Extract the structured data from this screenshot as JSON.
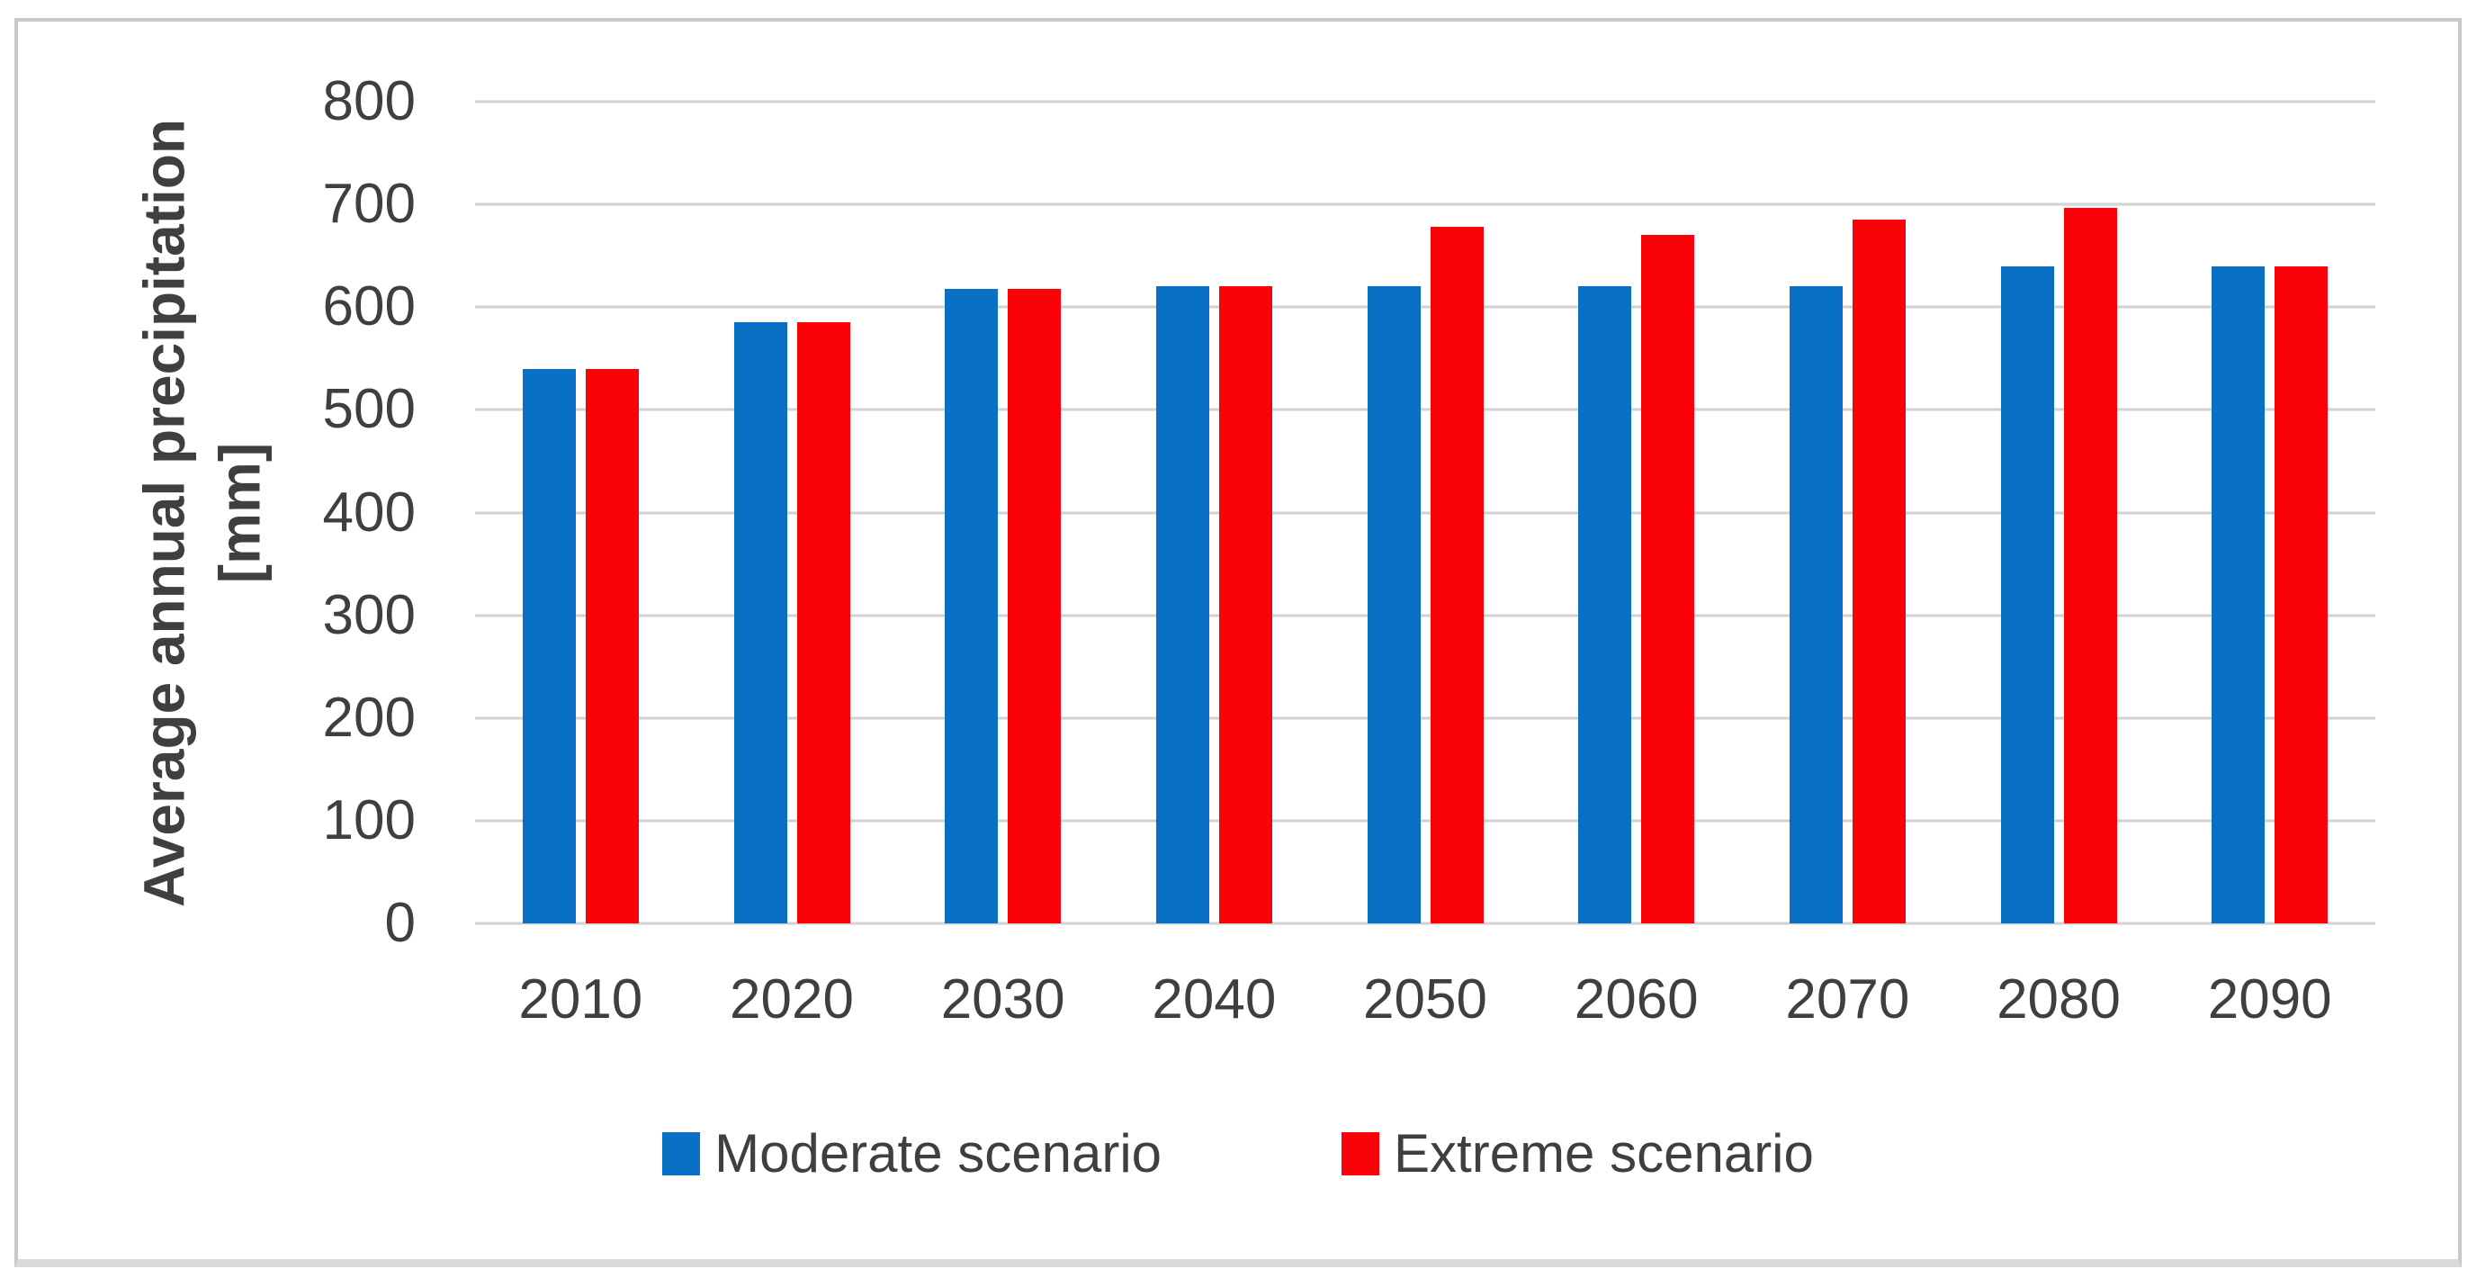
{
  "chart_data": {
    "type": "bar",
    "title": "",
    "ylabel_line1": "Average annual precipitation",
    "ylabel_line2": "[mm]",
    "xlabel": "",
    "categories": [
      "2010",
      "2020",
      "2030",
      "2040",
      "2050",
      "2060",
      "2070",
      "2080",
      "2090"
    ],
    "series": [
      {
        "name": "Moderate scenario",
        "color": "#0a70c6",
        "values": [
          540,
          585,
          618,
          620,
          620,
          620,
          620,
          640,
          640
        ]
      },
      {
        "name": "Extreme scenario",
        "color": "#fb0108",
        "values": [
          540,
          585,
          618,
          620,
          678,
          670,
          685,
          697,
          640
        ]
      }
    ],
    "ylim": [
      0,
      800
    ],
    "ytick_step": 100,
    "grid": true,
    "legend_position": "bottom",
    "gridline_color": "#d2d2d2",
    "text_color": "#3f3f3f",
    "frame_border_color": "#c9c9c9"
  }
}
